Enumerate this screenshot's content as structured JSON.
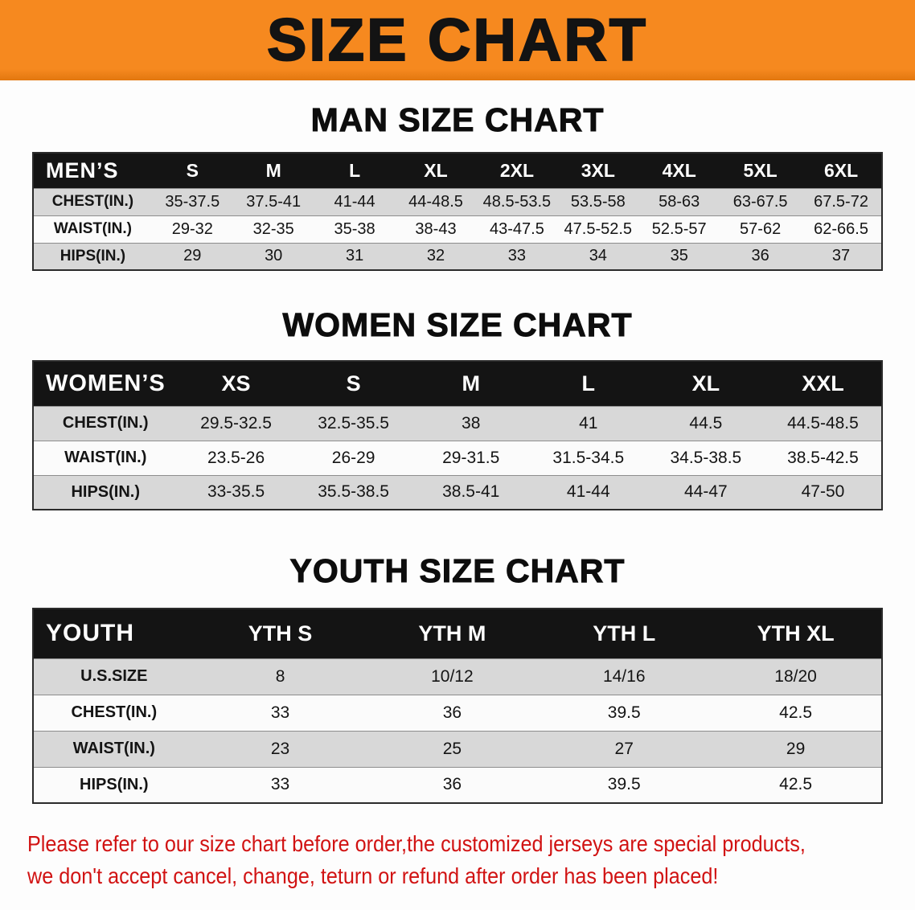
{
  "banner": {
    "title": "SIZE CHART"
  },
  "colors": {
    "banner_bg": "#f6891f",
    "header_bg": "#141414",
    "stripe": "#d8d8d8",
    "note_red": "#d11212"
  },
  "sections": [
    {
      "id": "men",
      "heading": "MAN SIZE CHART",
      "table": {
        "header": [
          "MEN’S",
          "S",
          "M",
          "L",
          "XL",
          "2XL",
          "3XL",
          "4XL",
          "5XL",
          "6XL"
        ],
        "rows": [
          [
            "CHEST(IN.)",
            "35-37.5",
            "37.5-41",
            "41-44",
            "44-48.5",
            "48.5-53.5",
            "53.5-58",
            "58-63",
            "63-67.5",
            "67.5-72"
          ],
          [
            "WAIST(IN.)",
            "29-32",
            "32-35",
            "35-38",
            "38-43",
            "43-47.5",
            "47.5-52.5",
            "52.5-57",
            "57-62",
            "62-66.5"
          ],
          [
            "HIPS(IN.)",
            "29",
            "30",
            "31",
            "32",
            "33",
            "34",
            "35",
            "36",
            "37"
          ]
        ]
      }
    },
    {
      "id": "women",
      "heading": "WOMEN SIZE CHART",
      "table": {
        "header": [
          "WOMEN’S",
          "XS",
          "S",
          "M",
          "L",
          "XL",
          "XXL"
        ],
        "rows": [
          [
            "CHEST(IN.)",
            "29.5-32.5",
            "32.5-35.5",
            "38",
            "41",
            "44.5",
            "44.5-48.5"
          ],
          [
            "WAIST(IN.)",
            "23.5-26",
            "26-29",
            "29-31.5",
            "31.5-34.5",
            "34.5-38.5",
            "38.5-42.5"
          ],
          [
            "HIPS(IN.)",
            "33-35.5",
            "35.5-38.5",
            "38.5-41",
            "41-44",
            "44-47",
            "47-50"
          ]
        ]
      }
    },
    {
      "id": "youth",
      "heading": "YOUTH SIZE CHART",
      "table": {
        "header": [
          "YOUTH",
          "YTH S",
          "YTH M",
          "YTH L",
          "YTH XL"
        ],
        "rows": [
          [
            "U.S.SIZE",
            "8",
            "10/12",
            "14/16",
            "18/20"
          ],
          [
            "CHEST(IN.)",
            "33",
            "36",
            "39.5",
            "42.5"
          ],
          [
            "WAIST(IN.)",
            "23",
            "25",
            "27",
            "29"
          ],
          [
            "HIPS(IN.)",
            "33",
            "36",
            "39.5",
            "42.5"
          ]
        ]
      }
    }
  ],
  "footer_note": {
    "lines": [
      "Please refer to our size chart before order,the customized jerseys are special products,",
      "we don't accept cancel, change, teturn or refund after order has been placed!"
    ]
  }
}
